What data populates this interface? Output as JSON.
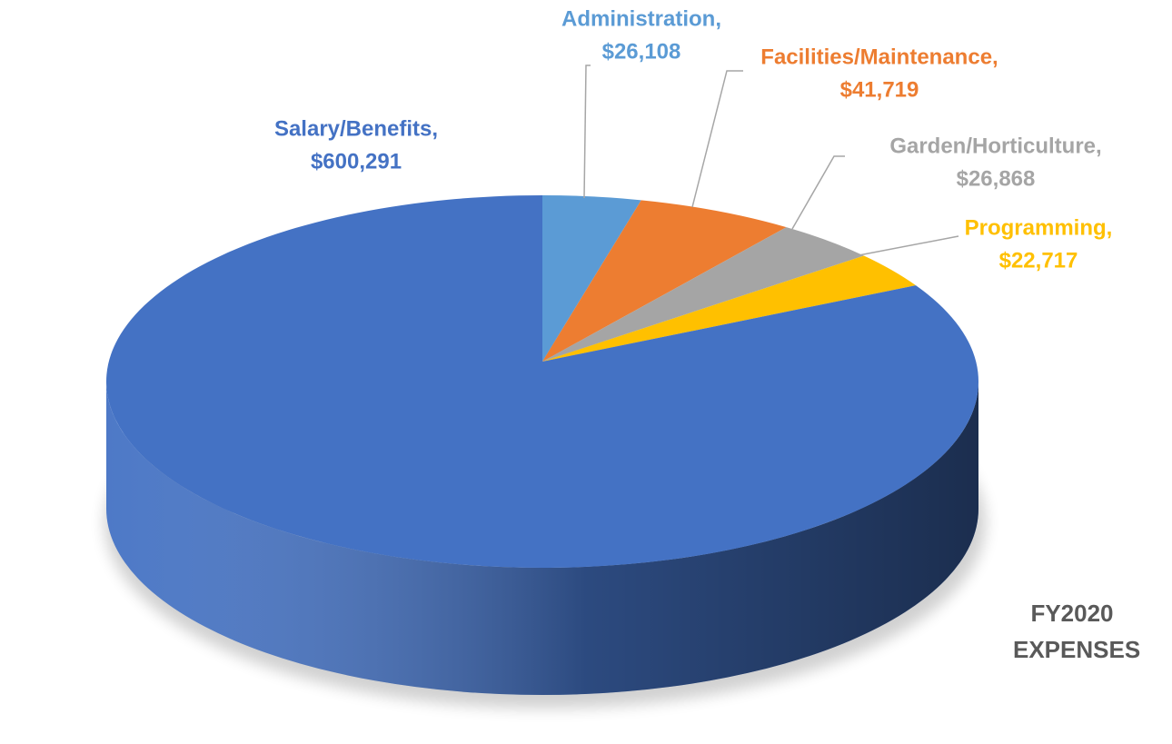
{
  "chart_data": {
    "type": "pie",
    "title": "FY2020 EXPENSES",
    "categories": [
      "Administration,",
      "Facilities/Maintenance,",
      "Garden/Horticulture,",
      "Programming,",
      "Salary/Benefits,"
    ],
    "values": [
      26108,
      41719,
      26868,
      22717,
      600291
    ],
    "value_labels": [
      "$26,108",
      "$41,719",
      "$26,868",
      "$22,717",
      "$600,291"
    ],
    "colors": [
      "#5b9bd5",
      "#ed7d31",
      "#a5a5a5",
      "#ffc000",
      "#4472c4"
    ]
  }
}
